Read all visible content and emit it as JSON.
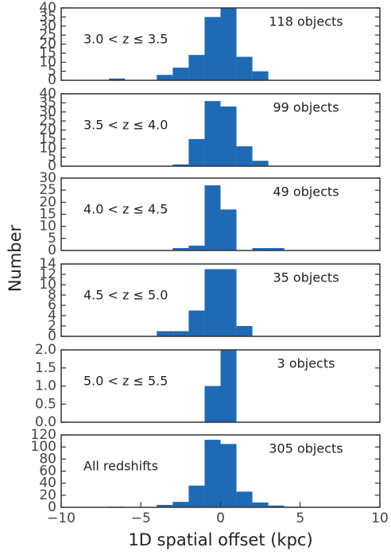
{
  "chart_data": [
    {
      "type": "histogram",
      "annotation": "118 objects",
      "label": "3.0 < z ≤ 3.5",
      "ylabel": "Number",
      "color": "#1f6ab5",
      "bins": [
        -10,
        -9,
        -8,
        -7,
        -6,
        -5,
        -4,
        -3,
        -2,
        -1,
        0,
        1,
        2,
        3,
        4,
        5,
        6,
        7,
        8,
        9,
        10
      ],
      "counts": [
        0,
        0,
        0,
        1,
        0,
        0,
        3,
        7,
        14,
        35,
        40,
        13,
        5,
        0,
        0,
        0,
        0,
        0,
        0,
        0
      ],
      "xlim": [
        -10,
        10
      ],
      "ylim": [
        0,
        40
      ],
      "yticks": [
        0,
        5,
        10,
        15,
        20,
        25,
        30,
        35,
        40
      ]
    },
    {
      "type": "histogram",
      "annotation": "99 objects",
      "label": "3.5 < z ≤ 4.0",
      "color": "#1f6ab5",
      "bins": [
        -10,
        -9,
        -8,
        -7,
        -6,
        -5,
        -4,
        -3,
        -2,
        -1,
        0,
        1,
        2,
        3,
        4,
        5,
        6,
        7,
        8,
        9,
        10
      ],
      "counts": [
        0,
        0,
        0,
        0,
        0,
        0,
        0,
        1,
        15,
        36,
        33,
        11,
        3,
        0,
        0,
        0,
        0,
        0,
        0,
        0
      ],
      "xlim": [
        -10,
        10
      ],
      "ylim": [
        0,
        40
      ],
      "yticks": [
        0,
        5,
        10,
        15,
        20,
        25,
        30,
        35,
        40
      ]
    },
    {
      "type": "histogram",
      "annotation": "49 objects",
      "label": "4.0 < z ≤ 4.5",
      "color": "#1f6ab5",
      "bins": [
        -10,
        -9,
        -8,
        -7,
        -6,
        -5,
        -4,
        -3,
        -2,
        -1,
        0,
        1,
        2,
        3,
        4,
        5,
        6,
        7,
        8,
        9,
        10
      ],
      "counts": [
        0,
        0,
        0,
        0,
        0,
        0,
        0,
        1,
        2,
        27,
        17,
        0,
        1,
        1,
        0,
        0,
        0,
        0,
        0,
        0
      ],
      "xlim": [
        -10,
        10
      ],
      "ylim": [
        0,
        30
      ],
      "yticks": [
        0,
        5,
        10,
        15,
        20,
        25,
        30
      ]
    },
    {
      "type": "histogram",
      "annotation": "35 objects",
      "label": "4.5 < z ≤ 5.0",
      "color": "#1f6ab5",
      "bins": [
        -10,
        -9,
        -8,
        -7,
        -6,
        -5,
        -4,
        -3,
        -2,
        -1,
        0,
        1,
        2,
        3,
        4,
        5,
        6,
        7,
        8,
        9,
        10
      ],
      "counts": [
        0,
        0,
        0,
        0,
        0,
        0,
        1,
        1,
        5,
        13,
        13,
        2,
        0,
        0,
        0,
        0,
        0,
        0,
        0,
        0
      ],
      "xlim": [
        -10,
        10
      ],
      "ylim": [
        0,
        14
      ],
      "yticks": [
        0,
        2,
        4,
        6,
        8,
        10,
        12,
        14
      ]
    },
    {
      "type": "histogram",
      "annotation": "3 objects",
      "label": "5.0 < z ≤ 5.5",
      "color": "#1f6ab5",
      "bins": [
        -10,
        -9,
        -8,
        -7,
        -6,
        -5,
        -4,
        -3,
        -2,
        -1,
        0,
        1,
        2,
        3,
        4,
        5,
        6,
        7,
        8,
        9,
        10
      ],
      "counts": [
        0,
        0,
        0,
        0,
        0,
        0,
        0,
        0,
        0,
        1,
        2,
        0,
        0,
        0,
        0,
        0,
        0,
        0,
        0,
        0
      ],
      "xlim": [
        -10,
        10
      ],
      "ylim": [
        0,
        2
      ],
      "yticks": [
        {
          "value": 0,
          "label": "0.0"
        },
        {
          "value": 0.5,
          "label": "0.5"
        },
        {
          "value": 1,
          "label": "1.0"
        },
        {
          "value": 1.5,
          "label": "1.5"
        },
        {
          "value": 2,
          "label": "2.0"
        }
      ]
    },
    {
      "type": "histogram",
      "annotation": "305 objects",
      "label": "All redshifts",
      "xlabel": "1D spatial offset (kpc)",
      "color": "#1f6ab5",
      "bins": [
        -10,
        -9,
        -8,
        -7,
        -6,
        -5,
        -4,
        -3,
        -2,
        -1,
        0,
        1,
        2,
        3,
        4,
        5,
        6,
        7,
        8,
        9,
        10
      ],
      "counts": [
        0,
        0,
        0,
        1,
        0,
        0,
        4,
        9,
        36,
        112,
        105,
        26,
        8,
        3,
        1,
        0,
        0,
        0,
        0,
        0
      ],
      "xlim": [
        -10,
        10
      ],
      "ylim": [
        0,
        120
      ],
      "yticks": [
        0,
        20,
        40,
        60,
        80,
        100,
        120
      ],
      "xticks": [
        {
          "value": -10,
          "label": "−10"
        },
        {
          "value": -5,
          "label": "−5"
        },
        0,
        5,
        10
      ]
    }
  ]
}
